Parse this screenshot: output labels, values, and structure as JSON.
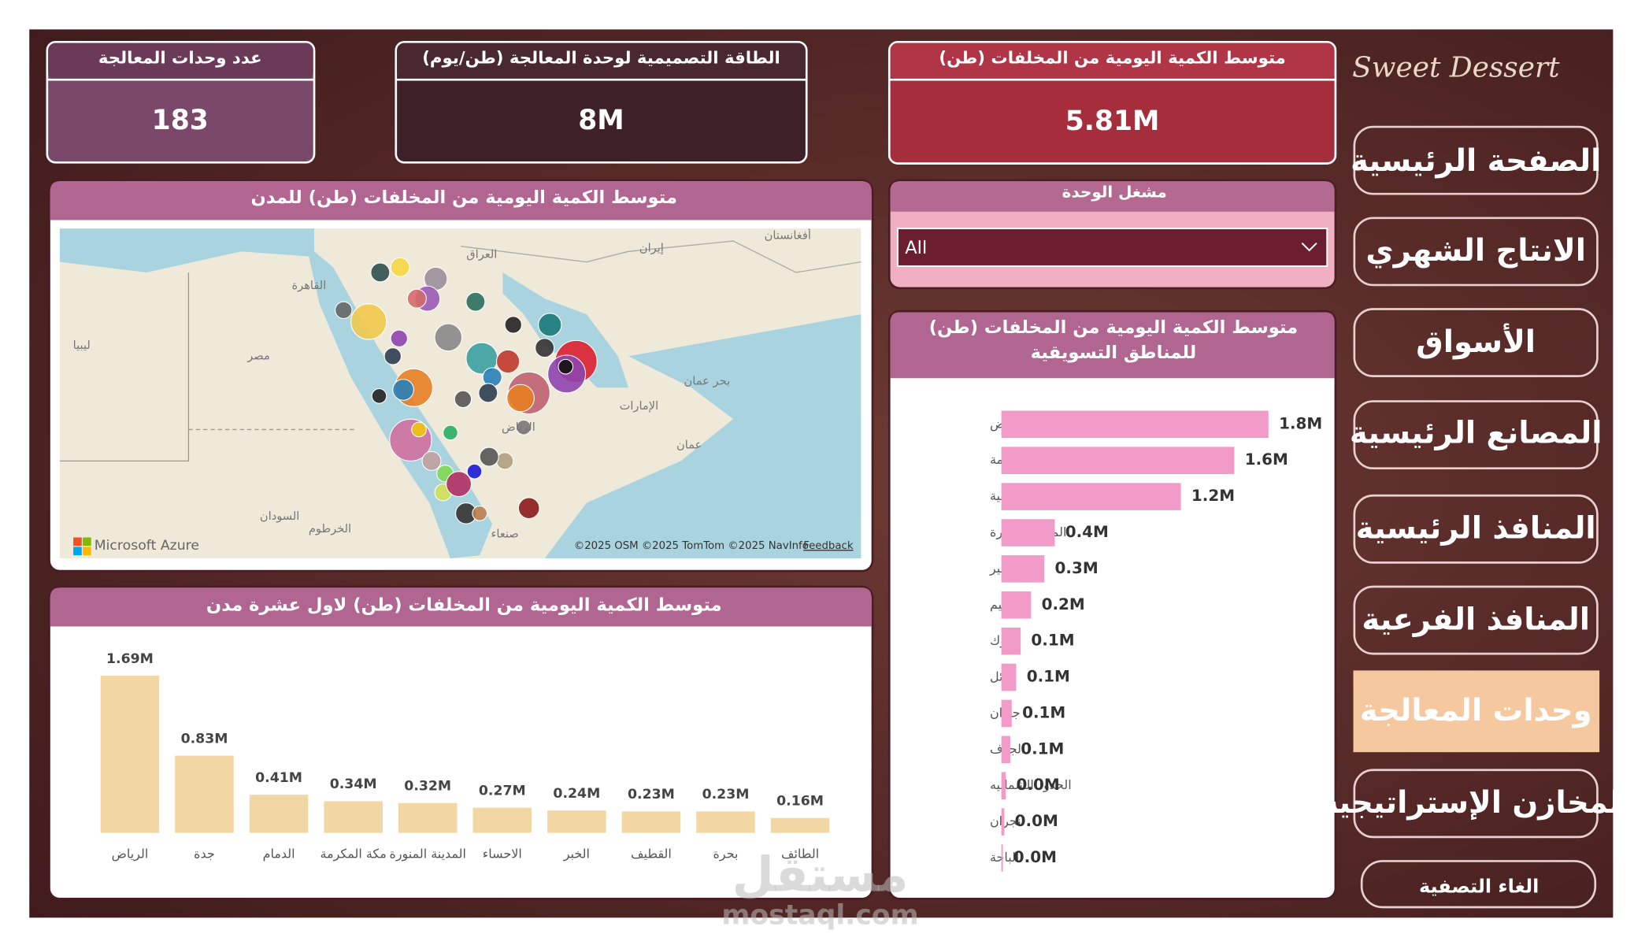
{
  "brand": "Sweet Dessert",
  "nav": [
    "الصفحة الرئيسية",
    "الانتاج الشهري",
    "الأسواق",
    "المصانع الرئيسية",
    "المنافذ الرئيسية",
    "المنافذ الفرعية",
    "وحدات المعالجة",
    "المخازن الإستراتيجية"
  ],
  "clear_filter": "الغاء التصفية",
  "kpis": [
    {
      "label": "عدد وحدات المعالجة",
      "value": "183"
    },
    {
      "label": "الطاقة التصميمية لوحدة المعالجة (طن/يوم)",
      "value": "8M"
    },
    {
      "label": "متوسط الكمية اليومية من المخلفات (طن)",
      "value": "5.81M"
    }
  ],
  "filter": {
    "label": "مشغل الوحدة",
    "value": "All"
  },
  "map": {
    "title": "متوسط الكمية اليومية من المخلفات (طن) للمدن",
    "labels": [
      "القاهرة",
      "مصر",
      "ليبيا",
      "السودان",
      "الخرطوم",
      "العراق",
      "إيران",
      "أفغانستان",
      "الإمارات",
      "عمان",
      "بحر عمان",
      "صنعاء",
      "الرياض"
    ],
    "logo": "Microsoft Azure",
    "attribution": "©2025 OSM ©2025 TomTom ©2025 NavInfo",
    "feedback": "Feedback"
  },
  "chart_data": [
    {
      "type": "barh",
      "title": "متوسط الكمية اليومية من المخلفات (طن) للمناطق التسويقية",
      "categories": [
        "الرياض",
        "مكة المكرمة",
        "المنطقة الشرقية",
        "المدينة المنورة",
        "عسير",
        "القصيم",
        "تبوك",
        "حائل",
        "جازان",
        "الجوف",
        "الحدود الشماليه",
        "نجران",
        "الباحة"
      ],
      "values": [
        1800000,
        1570000,
        1210000,
        360000,
        290000,
        200000,
        130000,
        100000,
        70000,
        60000,
        30000,
        20000,
        10000
      ],
      "value_labels": [
        "1.8M",
        "1.6M",
        "1.2M",
        "0.4M",
        "0.3M",
        "0.2M",
        "0.1M",
        "0.1M",
        "0.1M",
        "0.1M",
        "0.0M",
        "0.0M",
        "0.0M"
      ],
      "color": "#f29bc9"
    },
    {
      "type": "bar",
      "title": "متوسط الكمية اليومية من المخلفات (طن) لاول عشرة مدن",
      "categories": [
        "الرياض",
        "جدة",
        "الدمام",
        "مكة المكرمة",
        "المدينة المنورة",
        "الاحساء",
        "الخبر",
        "القطيف",
        "بحرة",
        "الطائف"
      ],
      "values": [
        1690000,
        830000,
        410000,
        340000,
        320000,
        270000,
        240000,
        230000,
        230000,
        160000
      ],
      "value_labels": [
        "1.69M",
        "0.83M",
        "0.41M",
        "0.34M",
        "0.32M",
        "0.27M",
        "0.24M",
        "0.23M",
        "0.23M",
        "0.16M"
      ],
      "color": "#f2d6a3"
    }
  ],
  "watermark": [
    "مستقل",
    "mostaql.com"
  ]
}
